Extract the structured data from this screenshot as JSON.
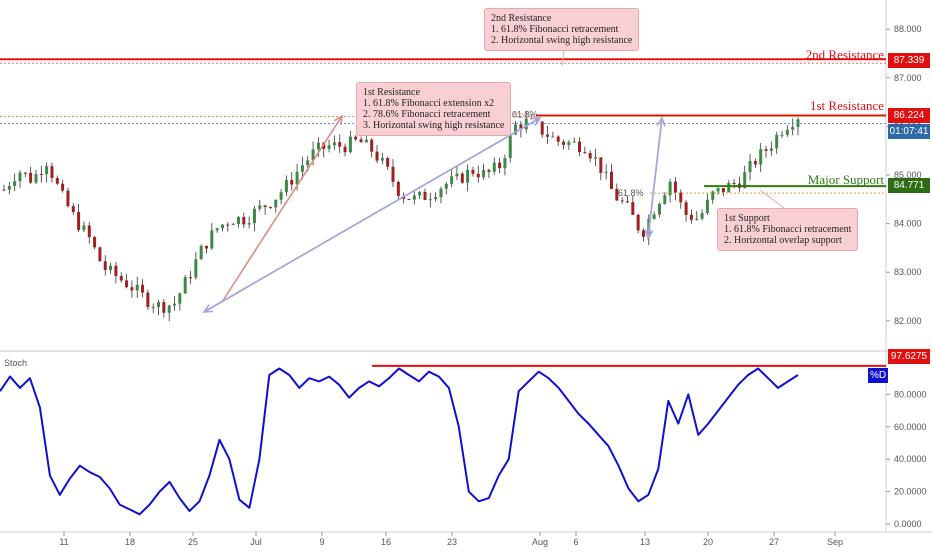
{
  "chart_data": [
    {
      "type": "candlestick",
      "title": "",
      "price_axis": {
        "ticks": [
          82.0,
          83.0,
          84.0,
          85.0,
          86.0,
          87.0,
          88.0
        ],
        "tick_labels": [
          "82.000",
          "83.000",
          "84.000",
          "85.000",
          "86.000",
          "87.000",
          "88.000"
        ],
        "ylim": [
          81.4,
          88.6
        ]
      },
      "time_axis": {
        "tick_labels": [
          "11",
          "18",
          "25",
          "Jul",
          "9",
          "16",
          "23",
          "Aug",
          "6",
          "13",
          "20",
          "27",
          "Sep"
        ]
      },
      "levels": [
        {
          "name": "2nd Resistance",
          "value": 87.339,
          "value_label": "87.339",
          "color": "#e01010"
        },
        {
          "name": "1st Resistance",
          "value": 86.224,
          "value_label": "86.224",
          "color": "#e01010"
        },
        {
          "name": "Major Support",
          "value": 84.771,
          "value_label": "84.771",
          "color": "#2e7d0e"
        }
      ],
      "countdown_label": "01:07:41",
      "fib_labels": [
        "61.8%",
        "61.8%"
      ],
      "callouts": [
        {
          "name": "2nd Resistance callout",
          "lines": [
            "2nd Resistance",
            "1. 61.8% Fibonacci retracement",
            "2. Horizontal swing high resistance"
          ]
        },
        {
          "name": "1st Resistance callout",
          "lines": [
            "1st Resistance",
            "1. 61.8% Fibonacci extension x2",
            "2. 78.6% Fibonacci retracement",
            "3. Horizontal swing high resistance"
          ]
        },
        {
          "name": "1st Support callout",
          "lines": [
            "1st Support",
            "1. 61.8% Fibonacci retracement",
            "2. Horizontal  overlap support"
          ]
        }
      ],
      "candle_waypoints": [
        84.7,
        85.1,
        84.9,
        85.3,
        84.6,
        84.1,
        83.7,
        83.1,
        82.9,
        82.7,
        82.45,
        82.3,
        82.35,
        82.9,
        83.5,
        83.9,
        84.1,
        84.1,
        84.3,
        84.5,
        84.8,
        85.2,
        85.5,
        85.6,
        85.6,
        85.7,
        85.5,
        85.1,
        84.6,
        84.5,
        84.6,
        84.8,
        84.9,
        85.1,
        85.0,
        85.2,
        86.0,
        86.1,
        85.9,
        85.7,
        85.65,
        85.6,
        85.2,
        84.6,
        84.3,
        83.8,
        84.4,
        84.9,
        84.2,
        84.1,
        84.6,
        84.75,
        84.9,
        85.3,
        85.6,
        86.0,
        86.22
      ]
    },
    {
      "type": "line",
      "indicator_label": "Stoch",
      "series": [
        {
          "name": "%D",
          "color": "#1010d0"
        }
      ],
      "y_axis": {
        "ticks": [
          0,
          20,
          40,
          60,
          80
        ],
        "tick_labels": [
          "0.0000",
          "20.0000",
          "40.0000",
          "60.0000",
          "80.0000"
        ],
        "ylim": [
          0,
          100
        ]
      },
      "levels": [
        {
          "value": 97.6275,
          "value_label": "97.6275",
          "color": "#e01010"
        }
      ],
      "values": [
        82,
        91,
        84,
        90,
        72,
        30,
        18,
        28,
        36,
        32,
        29,
        22,
        12,
        9,
        6,
        12,
        20,
        26,
        16,
        8,
        14,
        30,
        52,
        40,
        15,
        10,
        40,
        92,
        96,
        92,
        84,
        90,
        88,
        91,
        86,
        78,
        84,
        88,
        85,
        90,
        96,
        92,
        88,
        94,
        91,
        84,
        60,
        20,
        14,
        16,
        30,
        40,
        82,
        88,
        94,
        90,
        84,
        76,
        68,
        62,
        55,
        48,
        36,
        22,
        14,
        18,
        34,
        76,
        62,
        80,
        55,
        62,
        70,
        78,
        86,
        92,
        96,
        90,
        84,
        88,
        92
      ]
    }
  ]
}
